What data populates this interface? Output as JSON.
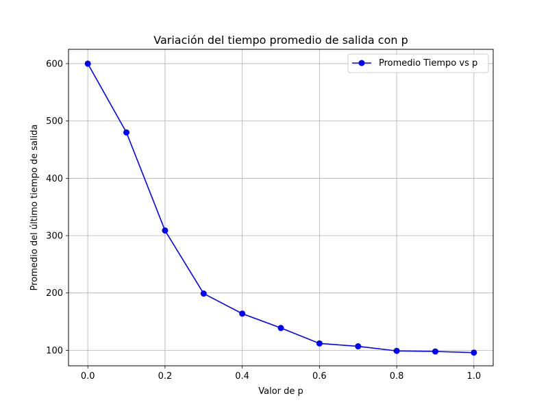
{
  "chart_data": {
    "type": "line",
    "title": "Variación del tiempo promedio de salida con p",
    "xlabel": "Valor de p",
    "ylabel": "Promedio del último tiempo de salida",
    "xlim": [
      -0.05,
      1.05
    ],
    "ylim": [
      73,
      625
    ],
    "xticks": [
      0.0,
      0.2,
      0.4,
      0.6,
      0.8,
      1.0
    ],
    "xtick_labels": [
      "0.0",
      "0.2",
      "0.4",
      "0.6",
      "0.8",
      "1.0"
    ],
    "yticks": [
      100,
      200,
      300,
      400,
      500,
      600
    ],
    "ytick_labels": [
      "100",
      "200",
      "300",
      "400",
      "500",
      "600"
    ],
    "grid": true,
    "legend_position": "top-right",
    "series": [
      {
        "name": "Promedio Tiempo vs p",
        "color": "#0000ff",
        "marker": "circle",
        "x": [
          0.0,
          0.1,
          0.2,
          0.3,
          0.4,
          0.5,
          0.6,
          0.7,
          0.8,
          0.9,
          1.0
        ],
        "y": [
          600,
          480,
          309,
          199,
          164,
          139,
          112,
          107,
          99,
          98,
          96
        ]
      }
    ]
  }
}
